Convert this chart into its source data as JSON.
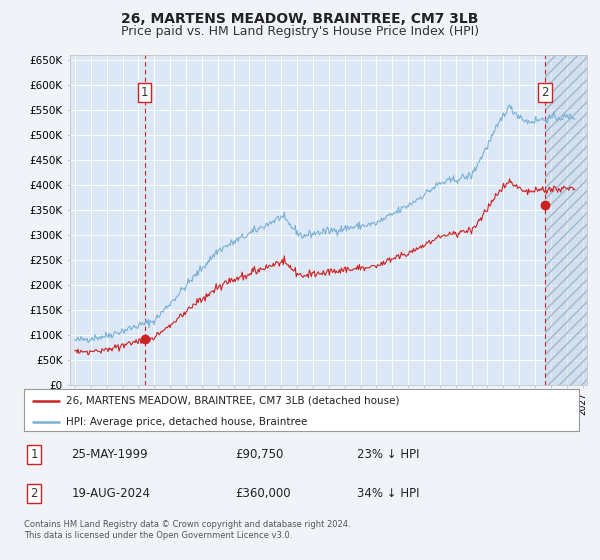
{
  "title": "26, MARTENS MEADOW, BRAINTREE, CM7 3LB",
  "subtitle": "Price paid vs. HM Land Registry's House Price Index (HPI)",
  "ylim": [
    0,
    660000
  ],
  "yticks": [
    0,
    50000,
    100000,
    150000,
    200000,
    250000,
    300000,
    350000,
    400000,
    450000,
    500000,
    550000,
    600000,
    650000
  ],
  "xlim_start": 1994.7,
  "xlim_end": 2027.3,
  "bg_color": "#f0f4f8",
  "plot_bg": "#dce8f5",
  "grid_color": "#ffffff",
  "hpi_color": "#7ab0d4",
  "price_color": "#cc2222",
  "sale1_date": 1999.39,
  "sale1_price": 90750,
  "sale2_date": 2024.63,
  "sale2_price": 360000,
  "legend_entries": [
    "26, MARTENS MEADOW, BRAINTREE, CM7 3LB (detached house)",
    "HPI: Average price, detached house, Braintree"
  ],
  "annotation1_date": "25-MAY-1999",
  "annotation1_price": "£90,750",
  "annotation1_hpi": "23% ↓ HPI",
  "annotation2_date": "19-AUG-2024",
  "annotation2_price": "£360,000",
  "annotation2_hpi": "34% ↓ HPI",
  "footer": "Contains HM Land Registry data © Crown copyright and database right 2024.\nThis data is licensed under the Open Government Licence v3.0.",
  "title_fontsize": 10,
  "subtitle_fontsize": 9
}
